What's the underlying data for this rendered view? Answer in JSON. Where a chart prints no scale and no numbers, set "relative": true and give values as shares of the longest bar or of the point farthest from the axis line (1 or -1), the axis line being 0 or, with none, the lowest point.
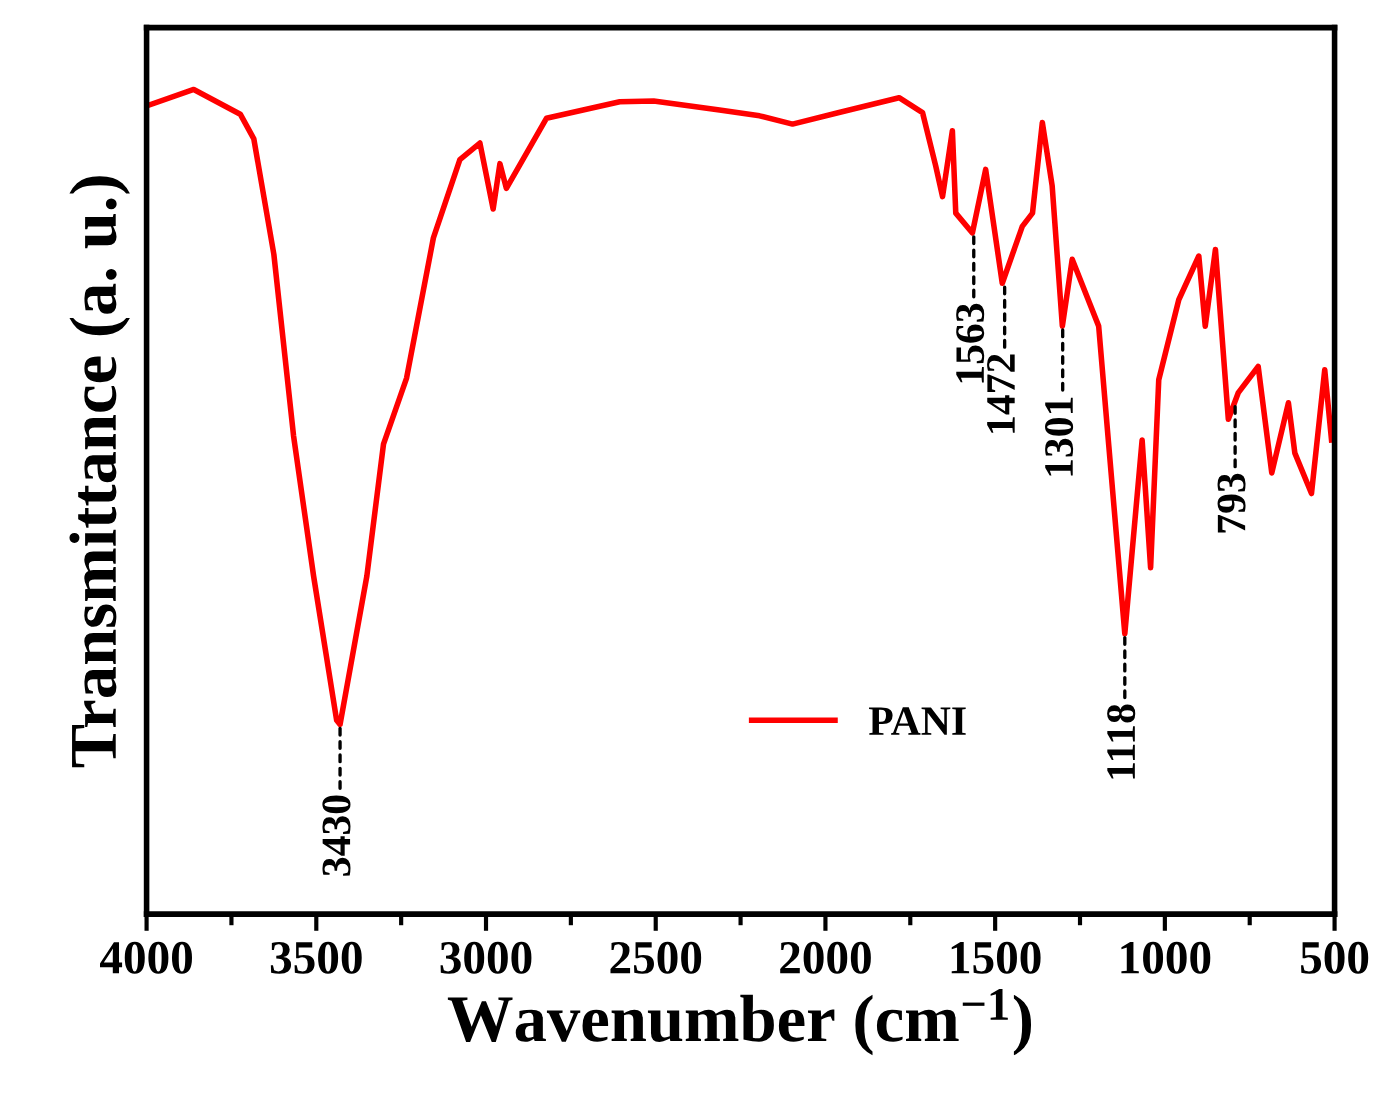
{
  "chart_data": {
    "type": "line",
    "relative": true,
    "xlabel": "Wavenumber (cm$^{−1}$)",
    "ylabel": "Transmittance (a. u.)",
    "xlim": [
      4000,
      500
    ],
    "xticks": [
      4000,
      3500,
      3000,
      2500,
      2000,
      1500,
      1000,
      500
    ],
    "grid": false,
    "legend": "bottom",
    "marker": "none",
    "line_style": "solid",
    "series": [
      {
        "name": "PANI",
        "color": "#ff0000",
        "x": [
          4000,
          3861,
          3724,
          3684,
          3625,
          3567,
          3508,
          3440,
          3430,
          3351,
          3302,
          3234,
          3155,
          3077,
          3018,
          2979,
          2959,
          2940,
          2822,
          2606,
          2506,
          2312,
          2194,
          2097,
          1960,
          1783,
          1714,
          1675,
          1655,
          1626,
          1616,
          1567,
          1528,
          1479,
          1420,
          1390,
          1361,
          1332,
          1302,
          1273,
          1195,
          1165,
          1118,
          1067,
          1042,
          1018,
          959,
          900,
          881,
          851,
          813,
          784,
          725,
          685,
          636,
          617,
          568,
          529,
          509
        ],
        "values": [
          0.98,
          1.0,
          0.97,
          0.94,
          0.8,
          0.58,
          0.41,
          0.235,
          0.23,
          0.41,
          0.57,
          0.65,
          0.82,
          0.915,
          0.935,
          0.855,
          0.91,
          0.88,
          0.965,
          0.985,
          0.986,
          0.975,
          0.968,
          0.958,
          0.972,
          0.99,
          0.972,
          0.907,
          0.87,
          0.95,
          0.85,
          0.826,
          0.903,
          0.765,
          0.834,
          0.85,
          0.96,
          0.883,
          0.713,
          0.794,
          0.713,
          0.567,
          0.34,
          0.575,
          0.42,
          0.648,
          0.745,
          0.798,
          0.713,
          0.806,
          0.6,
          0.632,
          0.664,
          0.535,
          0.62,
          0.559,
          0.51,
          0.66,
          0.575
        ]
      }
    ],
    "annotations": [
      {
        "text": "3430",
        "x": 3430,
        "y": 0.23
      },
      {
        "text": "1563",
        "x": 1563,
        "y": 0.826
      },
      {
        "text": "1472",
        "x": 1472,
        "y": 0.765
      },
      {
        "text": "1301",
        "x": 1301,
        "y": 0.713
      },
      {
        "text": "1118",
        "x": 1118,
        "y": 0.34
      },
      {
        "text": "793",
        "x": 793,
        "y": 0.62
      }
    ]
  }
}
